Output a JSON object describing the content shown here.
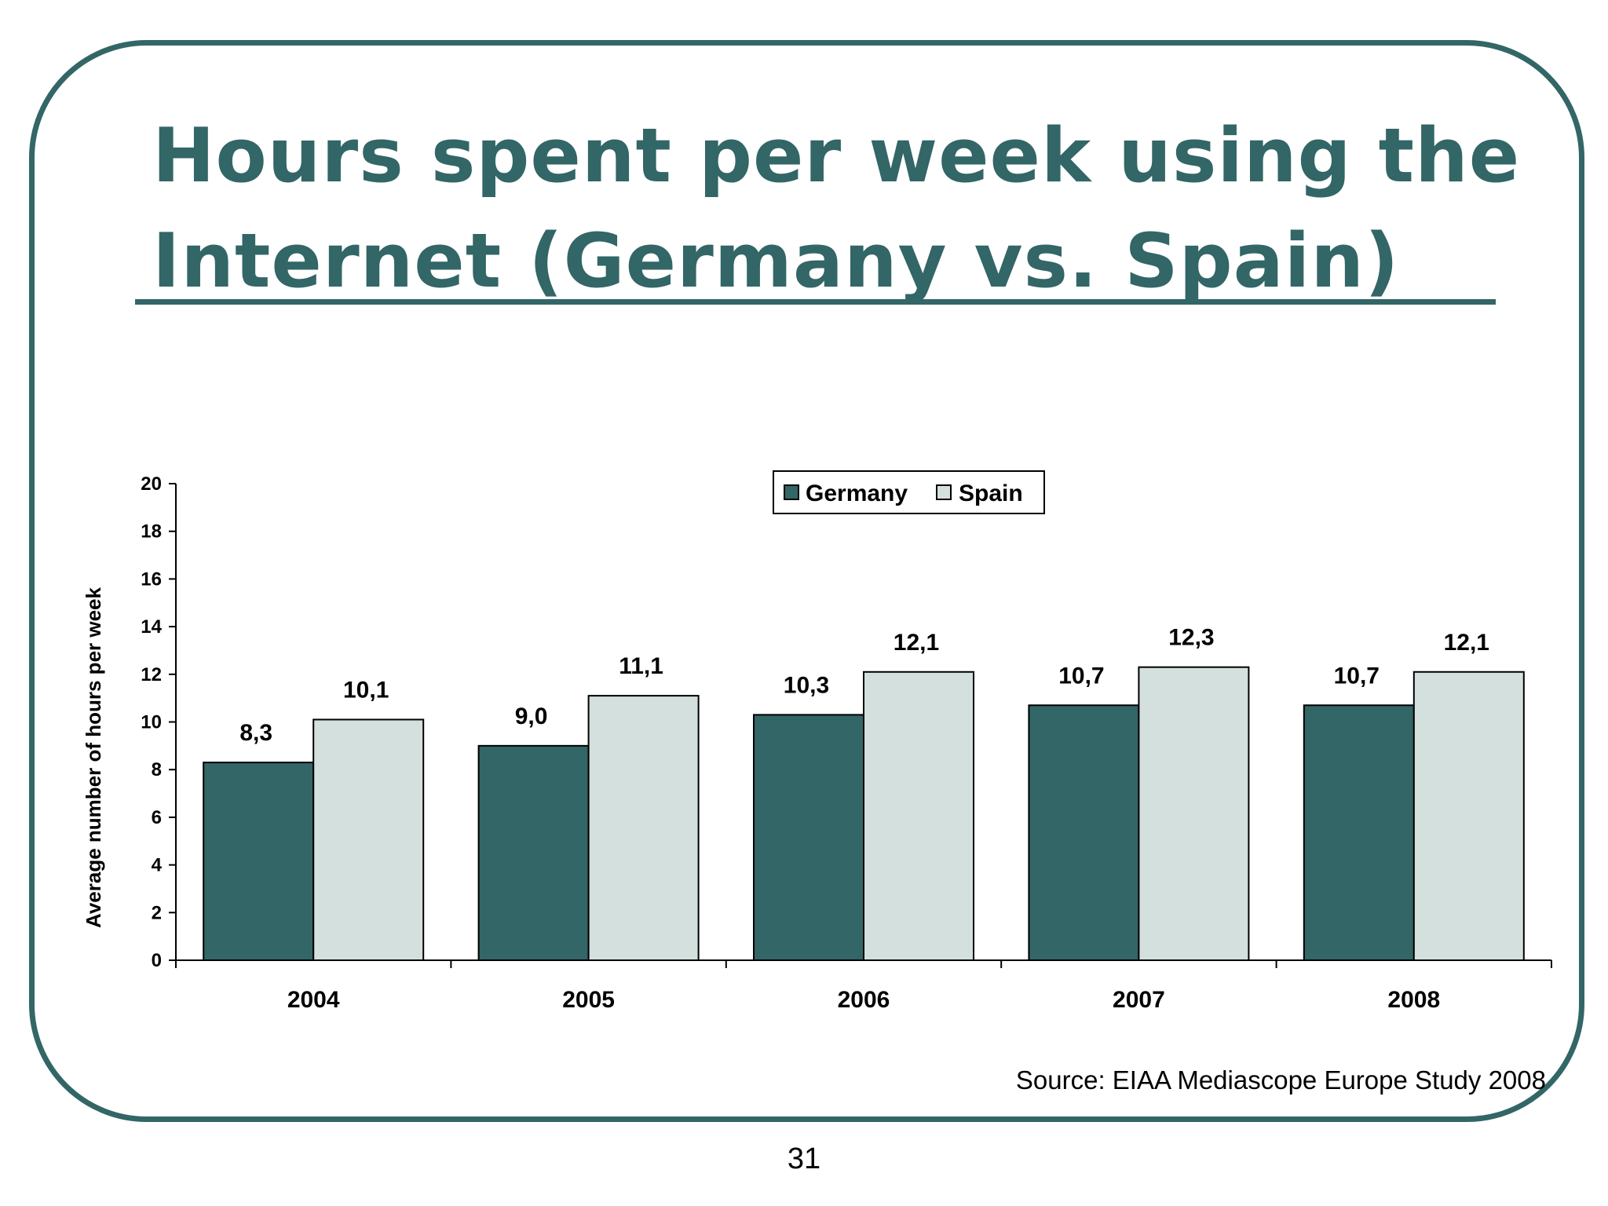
{
  "slide": {
    "title": "Hours spent per week using the Internet (Germany vs. Spain)",
    "source": "Source: EIAA Mediascope Europe Study 2008",
    "page_number": "31"
  },
  "colors": {
    "frame": "#336666",
    "germany": "#336666",
    "spain": "#d4e0dd"
  },
  "chart_data": {
    "type": "bar",
    "title": "",
    "xlabel": "",
    "ylabel": "Average number of hours per week",
    "ylim": [
      0,
      20
    ],
    "yticks": [
      0,
      2,
      4,
      6,
      8,
      10,
      12,
      14,
      16,
      18,
      20
    ],
    "categories": [
      "2004",
      "2005",
      "2006",
      "2007",
      "2008"
    ],
    "series": [
      {
        "name": "Germany",
        "values": [
          8.3,
          9.0,
          10.3,
          10.7,
          10.7
        ],
        "labels": [
          "8,3",
          "9,0",
          "10,3",
          "10,7",
          "10,7"
        ]
      },
      {
        "name": "Spain",
        "values": [
          10.1,
          11.1,
          12.1,
          12.3,
          12.1
        ],
        "labels": [
          "10,1",
          "11,1",
          "12,1",
          "12,3",
          "12,1"
        ]
      }
    ],
    "legend": {
      "position": "top-center"
    },
    "grid": false
  }
}
